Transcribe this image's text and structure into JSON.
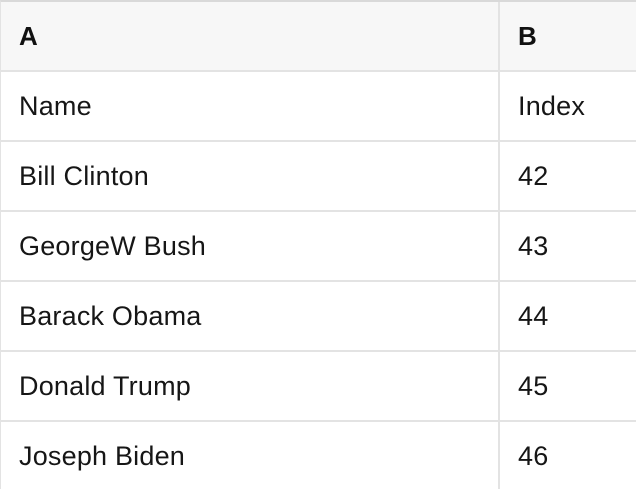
{
  "colors": {
    "header_background": "#f7f7f7",
    "row_background": "#ffffff",
    "border": "#e3e3e3",
    "text": "#161616"
  },
  "table": {
    "header": [
      "A",
      "B"
    ],
    "rows": [
      [
        "Name",
        "Index"
      ],
      [
        "Bill Clinton",
        "42"
      ],
      [
        "GeorgeW Bush",
        "43"
      ],
      [
        "Barack Obama",
        "44"
      ],
      [
        "Donald Trump",
        "45"
      ],
      [
        "Joseph Biden",
        "46"
      ]
    ]
  }
}
